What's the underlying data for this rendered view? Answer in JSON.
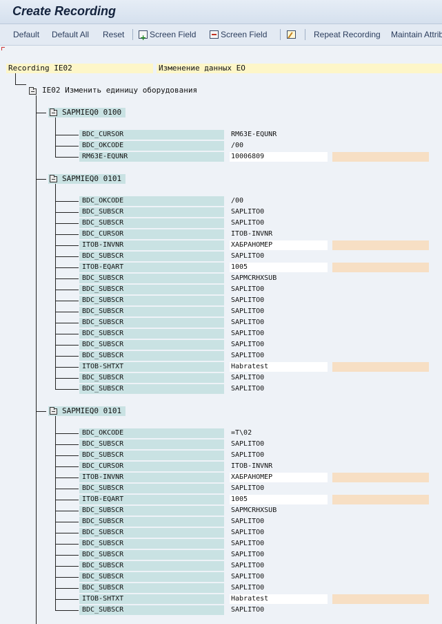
{
  "window": {
    "title": "Create Recording"
  },
  "toolbar": {
    "items": [
      {
        "label": "Default",
        "icon": ""
      },
      {
        "label": "Default All",
        "icon": ""
      },
      {
        "label": "Reset",
        "icon": ""
      },
      {
        "label": "Screen Field",
        "icon": "insert-field-icon"
      },
      {
        "label": "Screen Field",
        "icon": "delete-field-icon"
      },
      {
        "label": "",
        "icon": "edit-icon"
      },
      {
        "label": "Repeat Recording",
        "icon": ""
      },
      {
        "label": "Maintain Attrib",
        "icon": ""
      }
    ]
  },
  "recording": {
    "label": "Recording IE02",
    "description": "Изменение данных ЕО",
    "transaction": "IE02 Изменить единицу оборудования"
  },
  "screens": [
    {
      "title": "SAPMIEQ0 0100",
      "fields": [
        {
          "name": "BDC_CURSOR",
          "value": "RM63E-EQUNR",
          "input": false
        },
        {
          "name": "BDC_OKCODE",
          "value": "/00",
          "input": false
        },
        {
          "name": "RM63E-EQUNR",
          "value": "10006809",
          "input": true
        }
      ]
    },
    {
      "title": "SAPMIEQ0 0101",
      "fields": [
        {
          "name": "BDC_OKCODE",
          "value": "/00",
          "input": false
        },
        {
          "name": "BDC_SUBSCR",
          "value": "SAPLITO0",
          "input": false
        },
        {
          "name": "BDC_SUBSCR",
          "value": "SAPLITO0",
          "input": false
        },
        {
          "name": "BDC_CURSOR",
          "value": "ITOB-INVNR",
          "input": false
        },
        {
          "name": "ITOB-INVNR",
          "value": "ХАБРАНОМЕР",
          "input": true
        },
        {
          "name": "BDC_SUBSCR",
          "value": "SAPLITO0",
          "input": false
        },
        {
          "name": "ITOB-EQART",
          "value": "1005",
          "input": true
        },
        {
          "name": "BDC_SUBSCR",
          "value": "SAPMCRHXSUB",
          "input": false
        },
        {
          "name": "BDC_SUBSCR",
          "value": "SAPLITO0",
          "input": false
        },
        {
          "name": "BDC_SUBSCR",
          "value": "SAPLITO0",
          "input": false
        },
        {
          "name": "BDC_SUBSCR",
          "value": "SAPLITO0",
          "input": false
        },
        {
          "name": "BDC_SUBSCR",
          "value": "SAPLITO0",
          "input": false
        },
        {
          "name": "BDC_SUBSCR",
          "value": "SAPLITO0",
          "input": false
        },
        {
          "name": "BDC_SUBSCR",
          "value": "SAPLITO0",
          "input": false
        },
        {
          "name": "BDC_SUBSCR",
          "value": "SAPLITO0",
          "input": false
        },
        {
          "name": "ITOB-SHTXT",
          "value": "Habratest",
          "input": true
        },
        {
          "name": "BDC_SUBSCR",
          "value": "SAPLITO0",
          "input": false
        },
        {
          "name": "BDC_SUBSCR",
          "value": "SAPLITO0",
          "input": false
        }
      ]
    },
    {
      "title": "SAPMIEQ0 0101",
      "fields": [
        {
          "name": "BDC_OKCODE",
          "value": "=T\\02",
          "input": false
        },
        {
          "name": "BDC_SUBSCR",
          "value": "SAPLITO0",
          "input": false
        },
        {
          "name": "BDC_SUBSCR",
          "value": "SAPLITO0",
          "input": false
        },
        {
          "name": "BDC_CURSOR",
          "value": "ITOB-INVNR",
          "input": false
        },
        {
          "name": "ITOB-INVNR",
          "value": "ХАБРАНОМЕР",
          "input": true
        },
        {
          "name": "BDC_SUBSCR",
          "value": "SAPLITO0",
          "input": false
        },
        {
          "name": "ITOB-EQART",
          "value": "1005",
          "input": true
        },
        {
          "name": "BDC_SUBSCR",
          "value": "SAPMCRHXSUB",
          "input": false
        },
        {
          "name": "BDC_SUBSCR",
          "value": "SAPLITO0",
          "input": false
        },
        {
          "name": "BDC_SUBSCR",
          "value": "SAPLITO0",
          "input": false
        },
        {
          "name": "BDC_SUBSCR",
          "value": "SAPLITO0",
          "input": false
        },
        {
          "name": "BDC_SUBSCR",
          "value": "SAPLITO0",
          "input": false
        },
        {
          "name": "BDC_SUBSCR",
          "value": "SAPLITO0",
          "input": false
        },
        {
          "name": "BDC_SUBSCR",
          "value": "SAPLITO0",
          "input": false
        },
        {
          "name": "BDC_SUBSCR",
          "value": "SAPLITO0",
          "input": false
        },
        {
          "name": "ITOB-SHTXT",
          "value": "Habratest",
          "input": true
        },
        {
          "name": "BDC_SUBSCR",
          "value": "SAPLITO0",
          "input": false
        }
      ]
    }
  ]
}
